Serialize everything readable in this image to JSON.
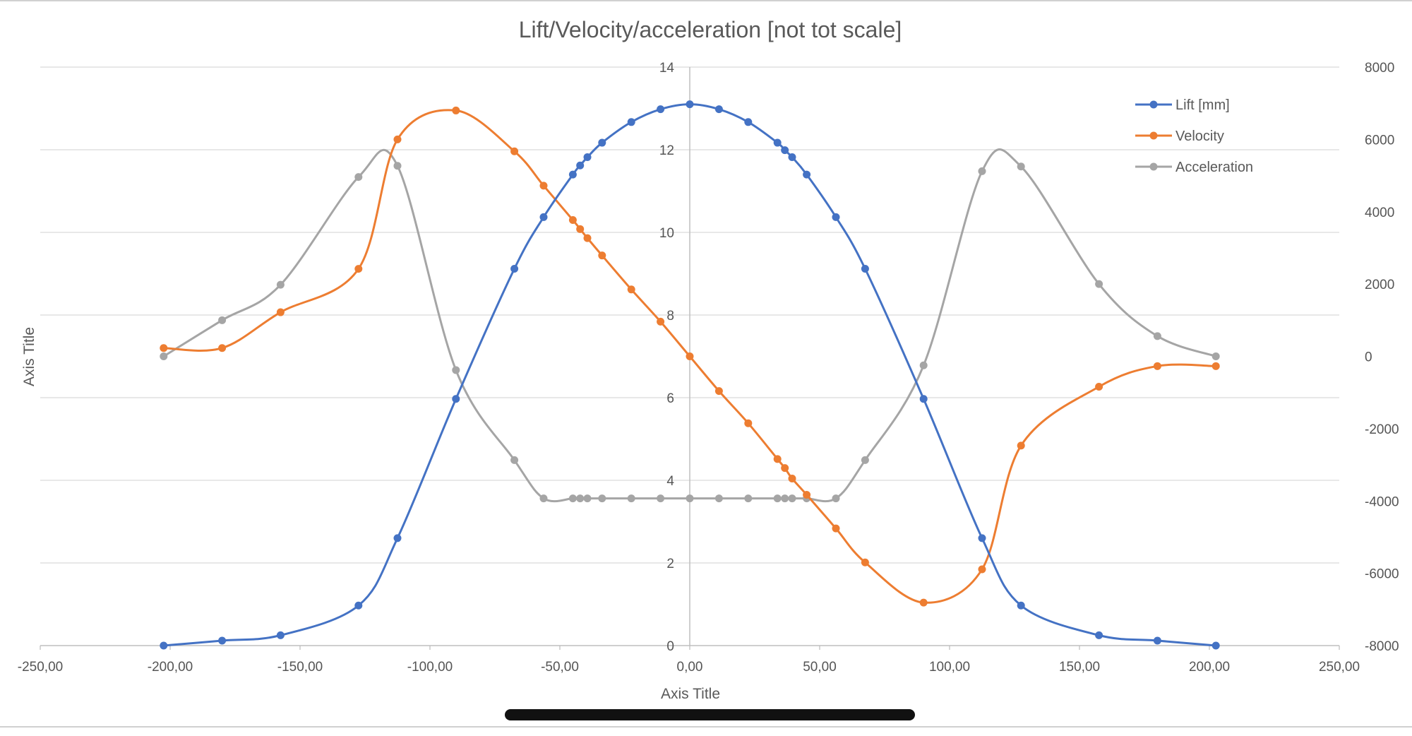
{
  "chart_data": {
    "type": "scatter",
    "title": "Lift/Velocity/acceleration [not tot scale]",
    "xlabel": "Axis Title",
    "ylabel": "Axis Title",
    "xlim": [
      -250,
      250
    ],
    "ylim": [
      0,
      14
    ],
    "y2lim": [
      -8000,
      8000
    ],
    "x_ticks": [
      "-250,00",
      "-200,00",
      "-150,00",
      "-100,00",
      "-50,00",
      "0,00",
      "50,00",
      "100,00",
      "150,00",
      "200,00",
      "250,00"
    ],
    "x_tick_values": [
      -250,
      -200,
      -150,
      -100,
      -50,
      0,
      50,
      100,
      150,
      200,
      250
    ],
    "y_ticks": [
      "0",
      "2",
      "4",
      "6",
      "8",
      "10",
      "12",
      "14"
    ],
    "y_tick_values": [
      0,
      2,
      4,
      6,
      8,
      10,
      12,
      14
    ],
    "y2_ticks": [
      "-8000",
      "-6000",
      "-4000",
      "-2000",
      "0",
      "2000",
      "4000",
      "6000",
      "8000"
    ],
    "y2_tick_values": [
      -8000,
      -6000,
      -4000,
      -2000,
      0,
      2000,
      4000,
      6000,
      8000
    ],
    "legend_position": "top-right",
    "series": [
      {
        "name": "Lift [mm]",
        "color": "#4472c4",
        "axis": "left",
        "x": [
          -202.5,
          -180,
          -157.5,
          -127.5,
          -112.5,
          -90,
          -67.5,
          -56.25,
          -45,
          -42.2,
          -39.4,
          -33.75,
          -22.5,
          -11.25,
          0,
          11.25,
          22.5,
          33.75,
          36.6,
          39.4,
          45,
          56.25,
          67.5,
          90,
          112.5,
          127.5,
          157.5,
          180,
          202.5
        ],
        "values": [
          0,
          0.12,
          0.25,
          0.97,
          2.6,
          5.97,
          9.12,
          10.37,
          11.4,
          11.62,
          11.82,
          12.17,
          12.67,
          12.98,
          13.1,
          12.98,
          12.67,
          12.17,
          11.99,
          11.82,
          11.4,
          10.37,
          9.12,
          5.97,
          2.6,
          0.97,
          0.25,
          0.12,
          0
        ]
      },
      {
        "name": "Velocity",
        "color": "#ed7d31",
        "axis": "right",
        "x": [
          -202.5,
          -180,
          -157.5,
          -127.5,
          -112.5,
          -90,
          -67.5,
          -56.25,
          -45,
          -42.2,
          -39.4,
          -33.75,
          -22.5,
          -11.25,
          0,
          11.25,
          22.5,
          33.75,
          36.6,
          39.4,
          45,
          56.25,
          67.5,
          90,
          112.5,
          127.5,
          157.5,
          180,
          202.5
        ],
        "values": [
          230,
          230,
          1220,
          2420,
          6000,
          6800,
          5670,
          4720,
          3770,
          3520,
          3270,
          2790,
          1850,
          960,
          0,
          -960,
          -1850,
          -2840,
          -3090,
          -3380,
          -3830,
          -4760,
          -5700,
          -6810,
          -5890,
          -2470,
          -840,
          -270,
          -270
        ]
      },
      {
        "name": "Acceleration",
        "color": "#a5a5a5",
        "axis": "right",
        "x": [
          -202.5,
          -180,
          -157.5,
          -127.5,
          -112.5,
          -90,
          -67.5,
          -56.25,
          -45,
          -42.2,
          -39.4,
          -33.75,
          -22.5,
          -11.25,
          0,
          11.25,
          22.5,
          33.75,
          36.6,
          39.4,
          45,
          56.25,
          67.5,
          90,
          112.5,
          127.5,
          157.5,
          180,
          202.5
        ],
        "values": [
          0,
          1000,
          1980,
          4960,
          5270,
          -380,
          -2870,
          -3930,
          -3930,
          -3930,
          -3930,
          -3930,
          -3930,
          -3930,
          -3930,
          -3930,
          -3930,
          -3930,
          -3930,
          -3930,
          -3930,
          -3930,
          -2870,
          -250,
          5120,
          5250,
          2000,
          560,
          0
        ]
      }
    ]
  }
}
